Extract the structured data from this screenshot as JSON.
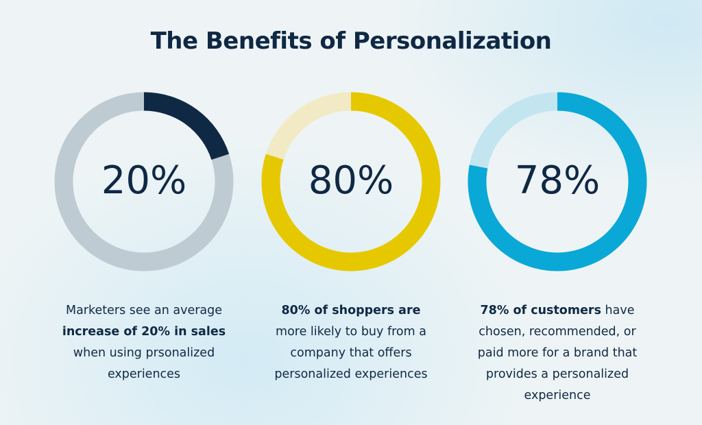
{
  "title": "The Benefits of Personalization",
  "chart_data": [
    {
      "type": "donut",
      "values": [
        20
      ],
      "value_labels": [
        "20%"
      ],
      "max": 100,
      "color": "#0f2844",
      "track_color": "#bfcbd3",
      "caption": [
        {
          "text": "Marketers see an average ",
          "bold": false
        },
        {
          "text": "increase of 20% in sales",
          "bold": true
        },
        {
          "text": " when using prsonalized experiences",
          "bold": false
        }
      ]
    },
    {
      "type": "donut",
      "values": [
        80
      ],
      "value_labels": [
        "80%"
      ],
      "max": 100,
      "color": "#e6c800",
      "track_color": "#f1eac4",
      "caption": [
        {
          "text": "80% of shoppers are",
          "bold": true
        },
        {
          "text": " more likely to buy from a company that offers personalized experiences",
          "bold": false
        }
      ]
    },
    {
      "type": "donut",
      "values": [
        78
      ],
      "value_labels": [
        "78%"
      ],
      "max": 100,
      "color": "#0aa8d6",
      "track_color": "#c3e5ef",
      "caption": [
        {
          "text": "78% of customers",
          "bold": true
        },
        {
          "text": " have chosen, recommended, or paid more for a brand that provides a personalized experience",
          "bold": false
        }
      ]
    }
  ]
}
